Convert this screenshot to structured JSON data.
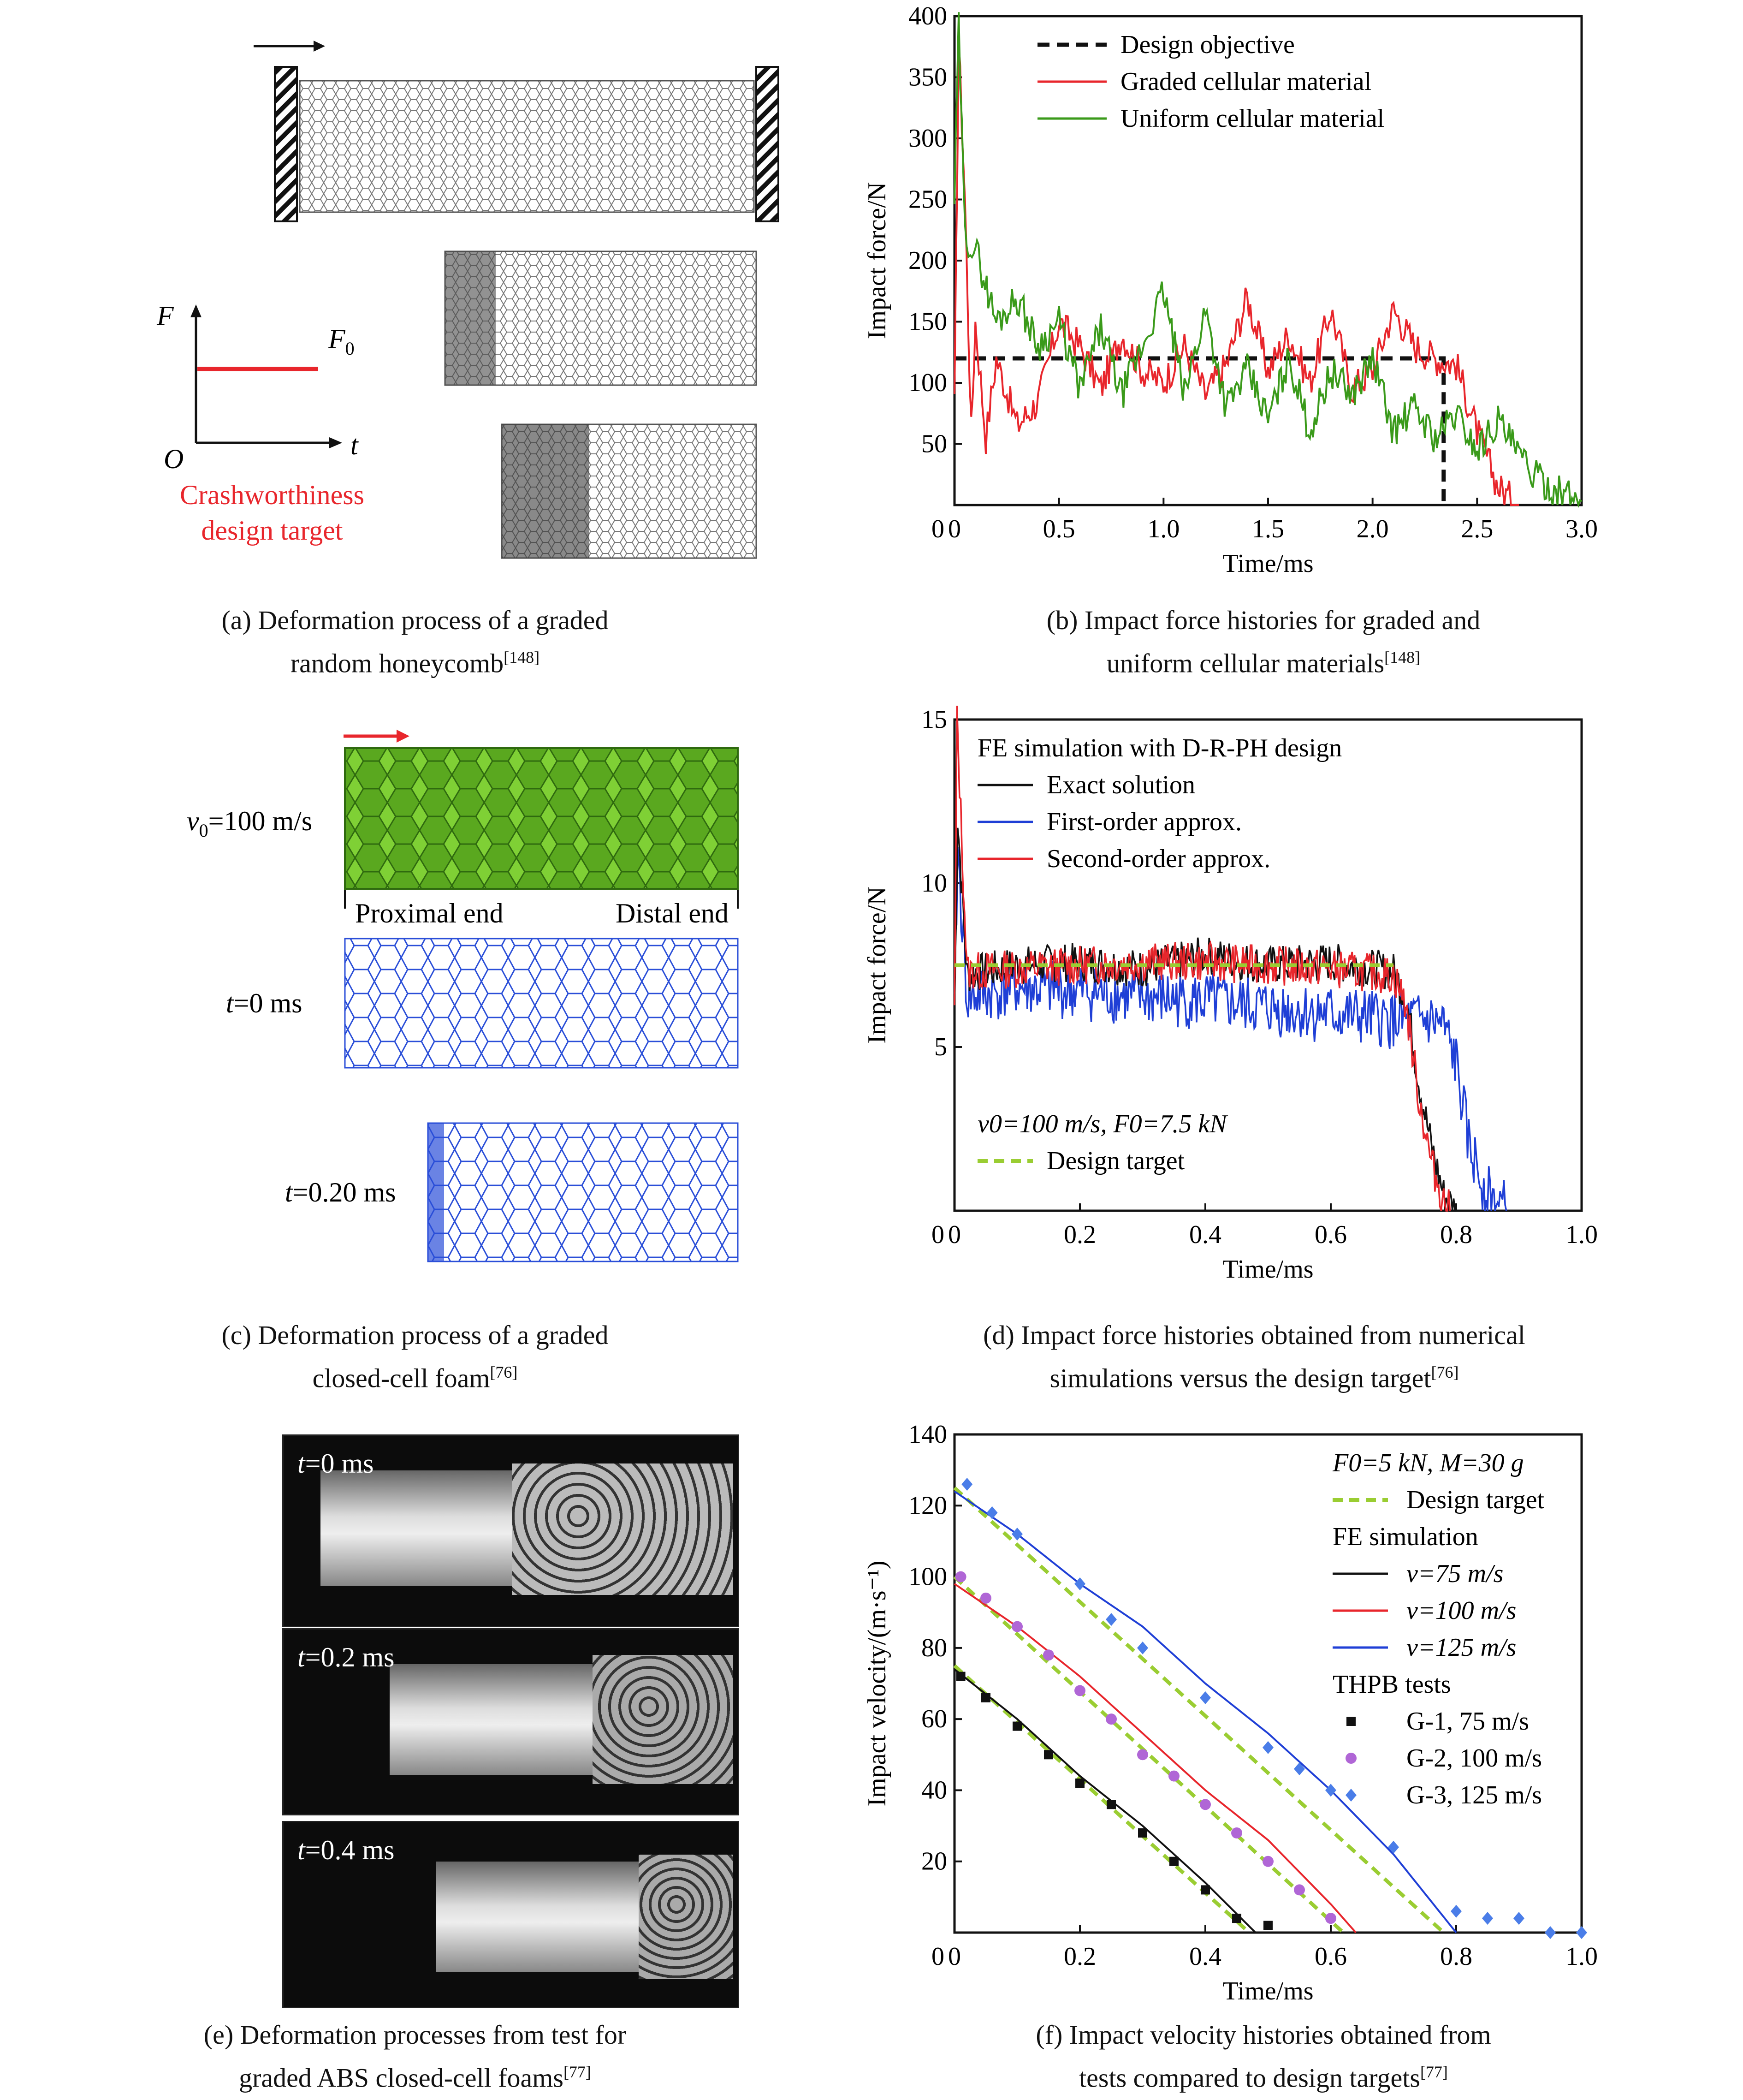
{
  "panel_a": {
    "axis_F": "F",
    "axis_t": "t",
    "origin": "O",
    "F0": "F",
    "F0_sub": "0",
    "target_line1": "Crashworthiness",
    "target_line2": "design target",
    "target_color": "#e8262c",
    "caption_line1": "(a) Deformation process of a graded",
    "caption_line2": "random honeycomb",
    "caption_ref": "[148]"
  },
  "panel_b": {
    "caption_line1": "(b) Impact force histories for graded and",
    "caption_line2": "uniform cellular materials",
    "caption_ref": "[148]"
  },
  "panel_c": {
    "v0_label": "v",
    "v0_sub": "0",
    "v0_value": "=100 m/s",
    "proximal": "Proximal end",
    "distal": "Distal end",
    "t0": "t",
    "t0_value": "=0 ms",
    "t1": "t",
    "t1_value": "=0.20 ms",
    "caption_line1": "(c) Deformation process of a graded",
    "caption_line2": "closed-cell foam",
    "caption_ref": "[76]"
  },
  "panel_d": {
    "caption_line1": "(d) Impact force histories obtained from numerical",
    "caption_line2": "simulations versus the design target",
    "caption_ref": "[76]"
  },
  "panel_e": {
    "frames": [
      {
        "t": "t",
        "value": "=0 ms"
      },
      {
        "t": "t",
        "value": "=0.2 ms"
      },
      {
        "t": "t",
        "value": "=0.4 ms"
      }
    ],
    "caption_line1": "(e) Deformation processes  from test for",
    "caption_line2": "graded ABS closed-cell foams",
    "caption_ref": "[77]"
  },
  "panel_f": {
    "caption_line1": "(f) Impact velocity histories obtained from",
    "caption_line2": "tests compared to design targets",
    "caption_ref": "[77]"
  },
  "chart_data": [
    {
      "id": "b",
      "type": "line",
      "xlabel": "Time/ms",
      "ylabel": "Impact force/N",
      "xlim": [
        0,
        3.0
      ],
      "ylim": [
        0,
        400
      ],
      "xticks": [
        "0",
        "0.5",
        "1.0",
        "1.5",
        "2.0",
        "2.5",
        "3.0"
      ],
      "yticks": [
        "50",
        "100",
        "150",
        "200",
        "250",
        "300",
        "350",
        "400"
      ],
      "legend_position": "top-right",
      "series": [
        {
          "name": "Design objective",
          "color": "#111111",
          "style": "dashed",
          "x": [
            0,
            2.34,
            2.34
          ],
          "y": [
            120,
            120,
            0
          ]
        },
        {
          "name": "Graded cellular material",
          "color": "#e8262c",
          "style": "solid",
          "x": [
            0,
            0.02,
            0.05,
            0.08,
            0.1,
            0.15,
            0.2,
            0.3,
            0.4,
            0.5,
            0.6,
            0.7,
            0.8,
            0.9,
            1.0,
            1.1,
            1.2,
            1.3,
            1.4,
            1.5,
            1.6,
            1.7,
            1.8,
            1.9,
            2.0,
            2.1,
            2.2,
            2.3,
            2.4,
            2.5,
            2.6,
            2.7
          ],
          "y": [
            80,
            380,
            250,
            60,
            150,
            55,
            120,
            65,
            85,
            150,
            130,
            95,
            140,
            110,
            100,
            130,
            90,
            115,
            170,
            110,
            140,
            100,
            160,
            95,
            110,
            160,
            130,
            120,
            115,
            60,
            15,
            0
          ]
        },
        {
          "name": "Uniform cellular material",
          "color": "#3a9a1a",
          "style": "solid",
          "x": [
            0,
            0.02,
            0.05,
            0.1,
            0.2,
            0.3,
            0.4,
            0.5,
            0.6,
            0.7,
            0.8,
            0.9,
            1.0,
            1.1,
            1.2,
            1.3,
            1.4,
            1.5,
            1.6,
            1.7,
            1.8,
            1.9,
            2.0,
            2.1,
            2.2,
            2.3,
            2.4,
            2.5,
            2.6,
            2.7,
            2.8,
            2.9,
            3.0
          ],
          "y": [
            250,
            390,
            220,
            210,
            150,
            170,
            130,
            150,
            95,
            145,
            90,
            130,
            175,
            90,
            160,
            80,
            110,
            70,
            120,
            60,
            110,
            90,
            120,
            60,
            80,
            55,
            75,
            45,
            70,
            40,
            20,
            10,
            3
          ]
        }
      ]
    },
    {
      "id": "d",
      "type": "line",
      "title": "FE simulation with D-R-PH design",
      "annotation": "v0=100 m/s, F0=7.5 kN",
      "xlabel": "Time/ms",
      "ylabel": "Impact force/N",
      "xlim": [
        0,
        1.0
      ],
      "ylim": [
        0,
        15
      ],
      "xticks": [
        "0",
        "0.2",
        "0.4",
        "0.6",
        "0.8",
        "1.0"
      ],
      "yticks": [
        "5",
        "10",
        "15"
      ],
      "legend_position": "top-left",
      "series": [
        {
          "name": "Exact solution",
          "color": "#111111",
          "x": [
            0,
            0.005,
            0.02,
            0.1,
            0.2,
            0.3,
            0.4,
            0.5,
            0.6,
            0.7,
            0.72,
            0.74,
            0.76,
            0.78,
            0.8
          ],
          "y": [
            6,
            12,
            7.2,
            7.5,
            7.6,
            7.4,
            7.8,
            7.5,
            7.6,
            7.3,
            6.5,
            4,
            2,
            0.5,
            0
          ]
        },
        {
          "name": "First-order approx.",
          "color": "#1f3fd6",
          "x": [
            0,
            0.005,
            0.02,
            0.1,
            0.2,
            0.3,
            0.4,
            0.5,
            0.6,
            0.7,
            0.76,
            0.78,
            0.8,
            0.82,
            0.85,
            0.88
          ],
          "y": [
            6,
            11,
            6.5,
            6.8,
            6.7,
            6.5,
            6.4,
            6.2,
            6.0,
            5.8,
            5.8,
            5.6,
            4.5,
            2,
            0.5,
            0
          ]
        },
        {
          "name": "Second-order approx.",
          "color": "#e8262c",
          "x": [
            0,
            0.004,
            0.02,
            0.1,
            0.2,
            0.3,
            0.4,
            0.5,
            0.6,
            0.7,
            0.72,
            0.74,
            0.76,
            0.78,
            0.79
          ],
          "y": [
            6,
            15,
            7.3,
            7.4,
            7.5,
            7.6,
            7.6,
            7.5,
            7.4,
            7.2,
            6.3,
            3.5,
            1.5,
            0.3,
            0
          ]
        },
        {
          "name": "Design target",
          "color": "#9acd32",
          "style": "dashed",
          "x": [
            0,
            0.7
          ],
          "y": [
            7.5,
            7.5
          ]
        }
      ]
    },
    {
      "id": "f",
      "type": "line",
      "title": "F0=5 kN, M=30 g",
      "xlabel": "Time/ms",
      "ylabel": "Impact velocity/(m·s⁻¹)",
      "xlim": [
        0,
        1.0
      ],
      "ylim": [
        0,
        140
      ],
      "xticks": [
        "0",
        "0.2",
        "0.4",
        "0.6",
        "0.8",
        "1.0"
      ],
      "yticks": [
        "20",
        "40",
        "60",
        "80",
        "100",
        "120",
        "140"
      ],
      "legend_position": "top-right",
      "legend_headers": [
        "FE simulation",
        "THPB tests"
      ],
      "series": [
        {
          "name": "Design target",
          "color": "#9acd32",
          "style": "dashed",
          "group": "target",
          "lines": [
            {
              "x": [
                0,
                0.47
              ],
              "y": [
                75,
                0
              ]
            },
            {
              "x": [
                0,
                0.62
              ],
              "y": [
                100,
                0
              ]
            },
            {
              "x": [
                0,
                0.78
              ],
              "y": [
                125,
                0
              ]
            }
          ]
        },
        {
          "name": "v=75 m/s",
          "color": "#111111",
          "x": [
            0,
            0.1,
            0.2,
            0.3,
            0.4,
            0.48
          ],
          "y": [
            74,
            60,
            44,
            30,
            14,
            0
          ]
        },
        {
          "name": "v=100 m/s",
          "color": "#e8262c",
          "x": [
            0,
            0.1,
            0.2,
            0.3,
            0.4,
            0.5,
            0.6,
            0.64
          ],
          "y": [
            98,
            86,
            72,
            56,
            40,
            26,
            8,
            0
          ]
        },
        {
          "name": "v=125 m/s",
          "color": "#1f3fd6",
          "x": [
            0,
            0.1,
            0.2,
            0.3,
            0.4,
            0.5,
            0.6,
            0.7,
            0.8
          ],
          "y": [
            124,
            112,
            98,
            86,
            70,
            56,
            40,
            22,
            0
          ]
        },
        {
          "name": "G-1, 75 m/s",
          "color": "#111111",
          "marker": "square",
          "x": [
            0.01,
            0.05,
            0.1,
            0.15,
            0.2,
            0.25,
            0.3,
            0.35,
            0.4,
            0.45,
            0.5
          ],
          "y": [
            72,
            66,
            58,
            50,
            42,
            36,
            28,
            20,
            12,
            4,
            2
          ]
        },
        {
          "name": "G-2, 100 m/s",
          "color": "#b066d6",
          "marker": "circle",
          "x": [
            0.01,
            0.05,
            0.1,
            0.15,
            0.2,
            0.25,
            0.3,
            0.35,
            0.4,
            0.45,
            0.5,
            0.55,
            0.6
          ],
          "y": [
            100,
            94,
            86,
            78,
            68,
            60,
            50,
            44,
            36,
            28,
            20,
            12,
            4
          ]
        },
        {
          "name": "G-3, 125 m/s",
          "color": "#4a7de8",
          "marker": "diamond",
          "x": [
            0.02,
            0.06,
            0.1,
            0.2,
            0.25,
            0.3,
            0.4,
            0.5,
            0.55,
            0.6,
            0.7,
            0.8,
            0.85,
            0.9,
            0.95,
            1.0
          ],
          "y": [
            126,
            118,
            112,
            98,
            88,
            80,
            66,
            52,
            46,
            40,
            24,
            6,
            4,
            4,
            0,
            0
          ]
        }
      ]
    }
  ]
}
